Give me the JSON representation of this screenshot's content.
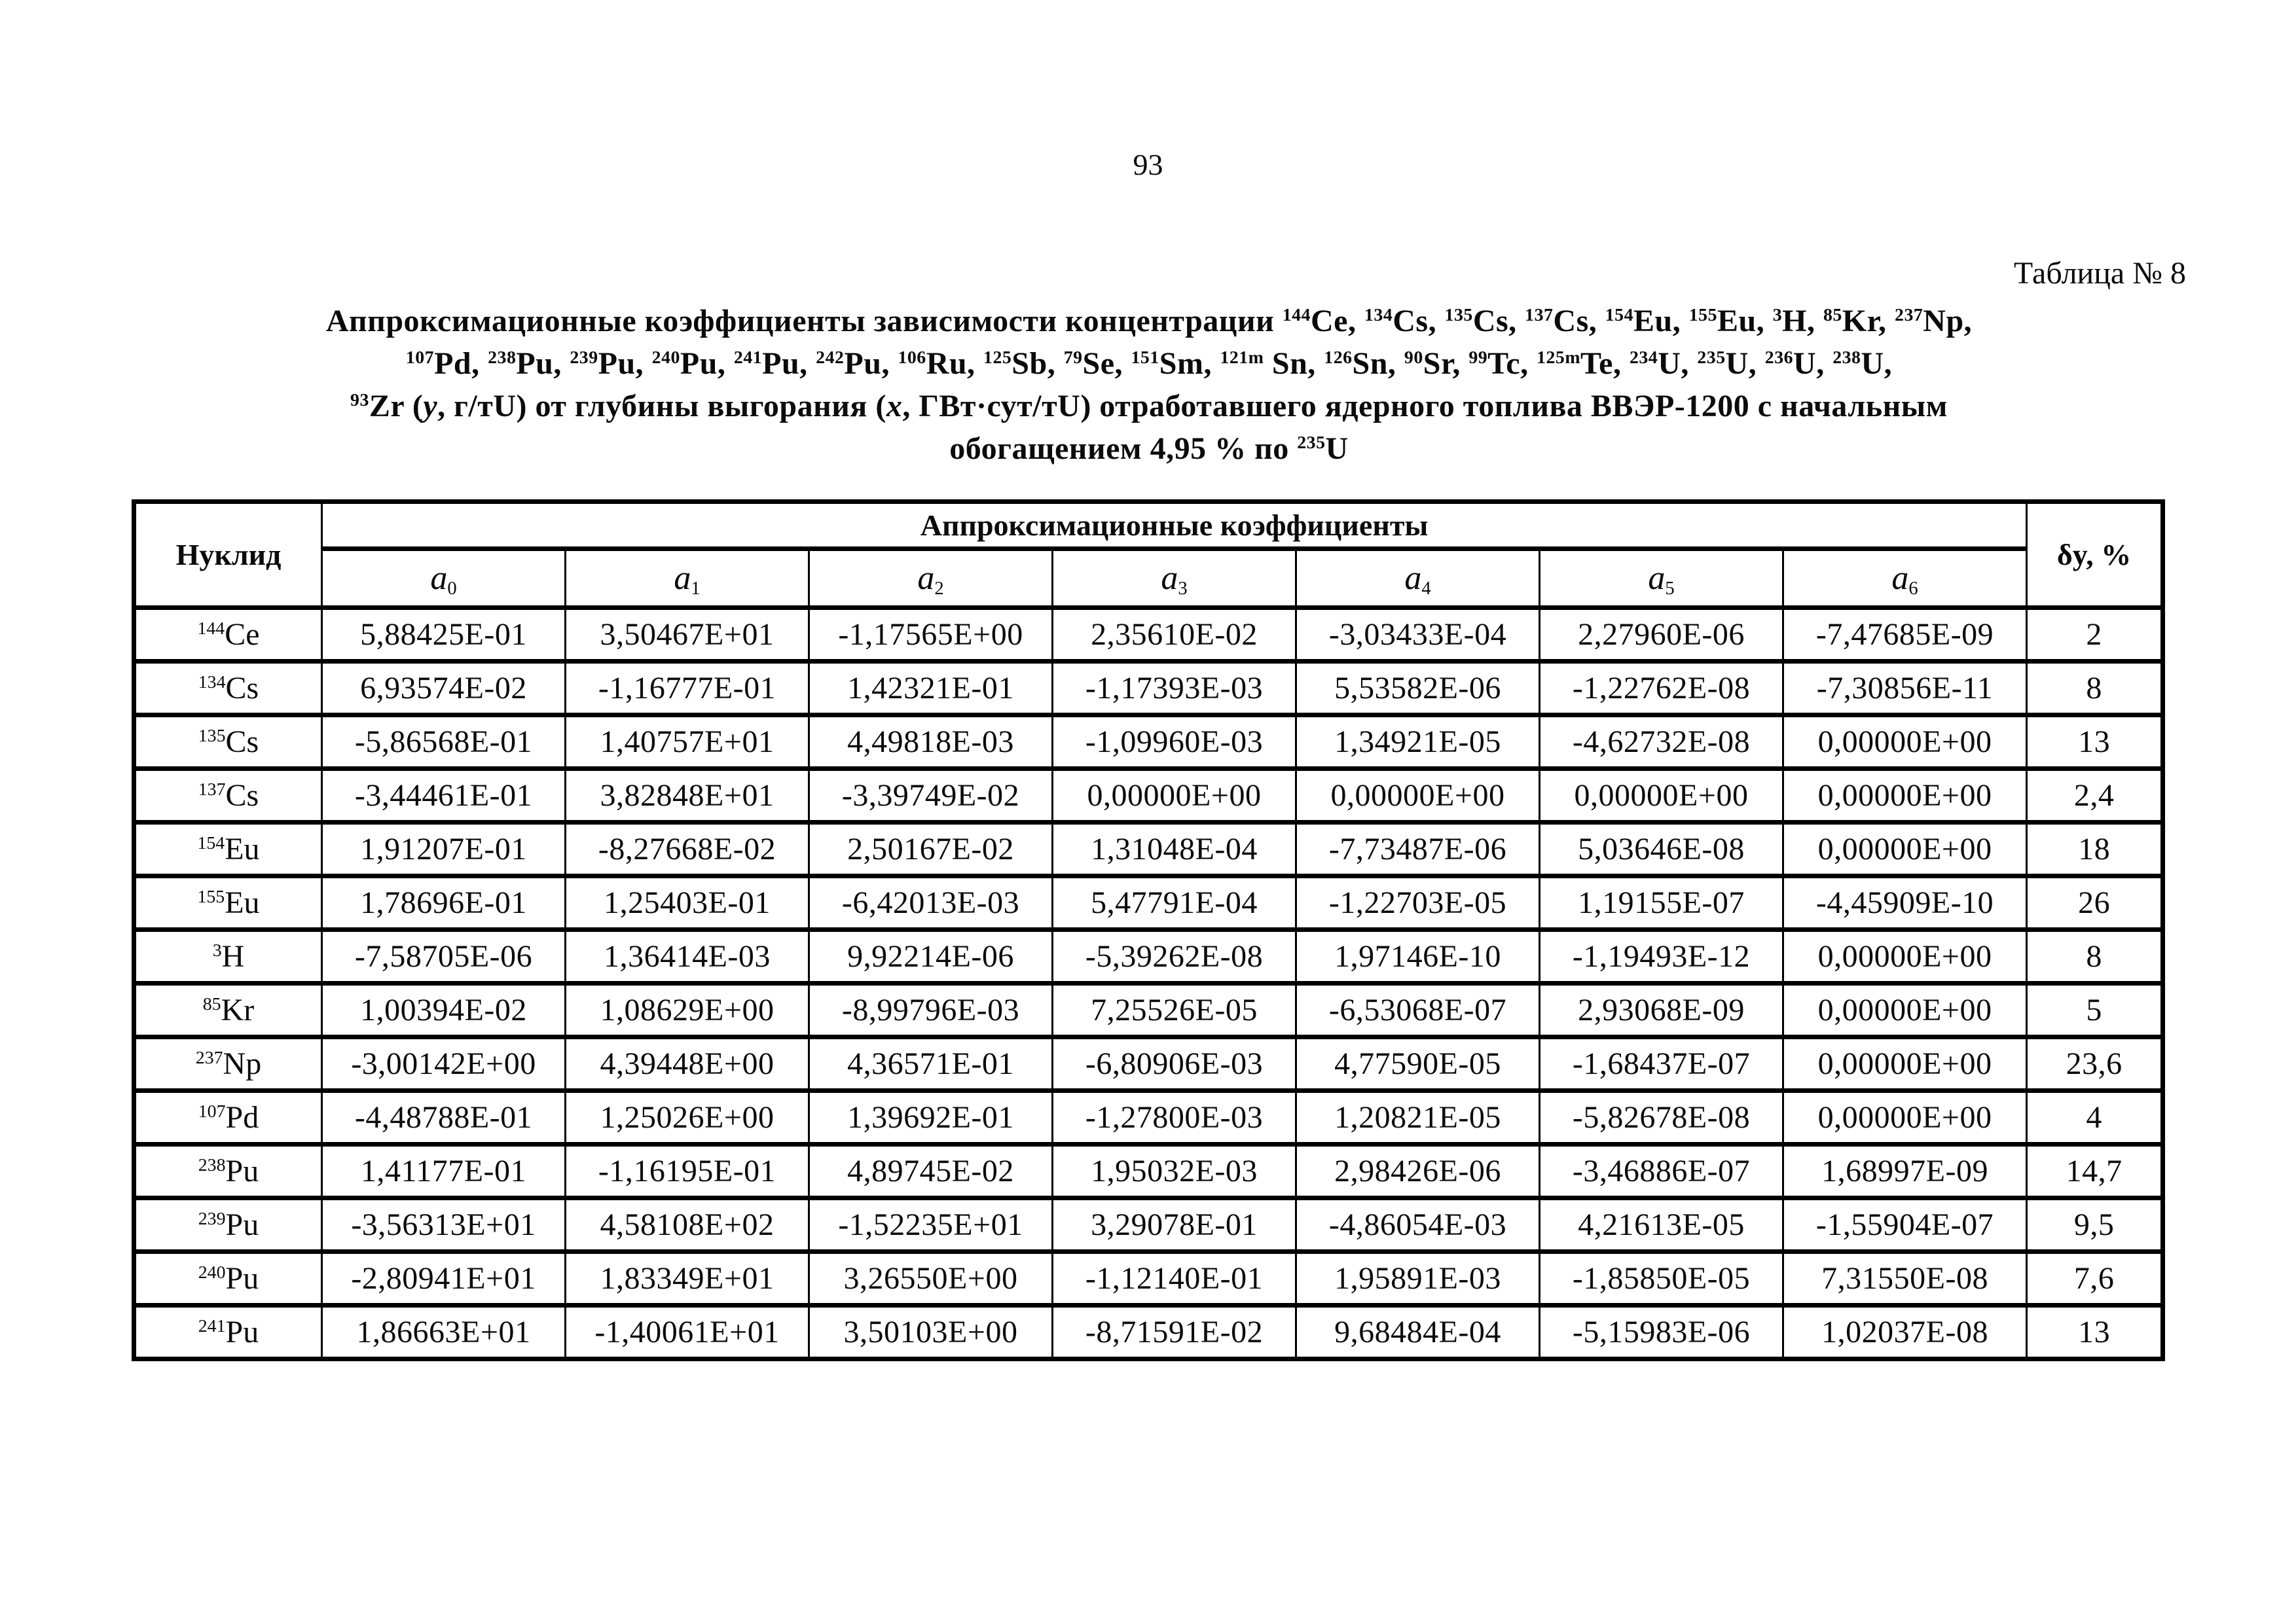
{
  "page_number": "93",
  "table_label": "Таблица № 8",
  "title_lines": [
    "Аппроксимационные коэффициенты зависимости концентрации ^{144}Ce, ^{134}Cs, ^{135}Cs, ^{137}Cs, ^{154}Eu, ^{155}Eu, ^{3}H, ^{85}Kr, ^{237}Np,",
    "^{107}Pd, ^{238}Pu, ^{239}Pu, ^{240}Pu, ^{241}Pu, ^{242}Pu, ^{106}Ru, ^{125}Sb, ^{79}Se, ^{151}Sm, ^{121m} Sn, ^{126}Sn, ^{90}Sr, ^{99}Tc, ^{125m}Te, ^{234}U, ^{235}U, ^{236}U, ^{238}U,",
    "^{93}Zr (*{y}, г/тU) от глубины выгорания (*{x}, ГВт·сут/тU) отработавшего ядерного топлива ВВЭР-1200 с начальным",
    "обогащением 4,95 % по ^{235}U"
  ],
  "table": {
    "header": {
      "nuclide": "Нуклид",
      "coefficients_group": "Аппроксимационные коэффициенты",
      "coefficient_columns": [
        "*{a}_{0}",
        "*{a}_{1}",
        "*{a}_{2}",
        "*{a}_{3}",
        "*{a}_{4}",
        "*{a}_{5}",
        "*{a}_{6}"
      ],
      "delta": "δy, %"
    },
    "rows": [
      {
        "nuclide": "^{144}Ce",
        "coefficients": [
          "5,88425E-01",
          "3,50467E+01",
          "-1,17565E+00",
          "2,35610E-02",
          "-3,03433E-04",
          "2,27960E-06",
          "-7,47685E-09"
        ],
        "delta_y": "2"
      },
      {
        "nuclide": "^{134}Cs",
        "coefficients": [
          "6,93574E-02",
          "-1,16777E-01",
          "1,42321E-01",
          "-1,17393E-03",
          "5,53582E-06",
          "-1,22762E-08",
          "-7,30856E-11"
        ],
        "delta_y": "8"
      },
      {
        "nuclide": "^{135}Cs",
        "coefficients": [
          "-5,86568E-01",
          "1,40757E+01",
          "4,49818E-03",
          "-1,09960E-03",
          "1,34921E-05",
          "-4,62732E-08",
          "0,00000E+00"
        ],
        "delta_y": "13"
      },
      {
        "nuclide": "^{137}Cs",
        "coefficients": [
          "-3,44461E-01",
          "3,82848E+01",
          "-3,39749E-02",
          "0,00000E+00",
          "0,00000E+00",
          "0,00000E+00",
          "0,00000E+00"
        ],
        "delta_y": "2,4"
      },
      {
        "nuclide": "^{154}Eu",
        "coefficients": [
          "1,91207E-01",
          "-8,27668E-02",
          "2,50167E-02",
          "1,31048E-04",
          "-7,73487E-06",
          "5,03646E-08",
          "0,00000E+00"
        ],
        "delta_y": "18"
      },
      {
        "nuclide": "^{155}Eu",
        "coefficients": [
          "1,78696E-01",
          "1,25403E-01",
          "-6,42013E-03",
          "5,47791E-04",
          "-1,22703E-05",
          "1,19155E-07",
          "-4,45909E-10"
        ],
        "delta_y": "26"
      },
      {
        "nuclide": "^{3}H",
        "coefficients": [
          "-7,58705E-06",
          "1,36414E-03",
          "9,92214E-06",
          "-5,39262E-08",
          "1,97146E-10",
          "-1,19493E-12",
          "0,00000E+00"
        ],
        "delta_y": "8"
      },
      {
        "nuclide": "^{85}Kr",
        "coefficients": [
          "1,00394E-02",
          "1,08629E+00",
          "-8,99796E-03",
          "7,25526E-05",
          "-6,53068E-07",
          "2,93068E-09",
          "0,00000E+00"
        ],
        "delta_y": "5"
      },
      {
        "nuclide": "^{237}Np",
        "coefficients": [
          "-3,00142E+00",
          "4,39448E+00",
          "4,36571E-01",
          "-6,80906E-03",
          "4,77590E-05",
          "-1,68437E-07",
          "0,00000E+00"
        ],
        "delta_y": "23,6"
      },
      {
        "nuclide": "^{107}Pd",
        "coefficients": [
          "-4,48788E-01",
          "1,25026E+00",
          "1,39692E-01",
          "-1,27800E-03",
          "1,20821E-05",
          "-5,82678E-08",
          "0,00000E+00"
        ],
        "delta_y": "4"
      },
      {
        "nuclide": "^{238}Pu",
        "coefficients": [
          "1,41177E-01",
          "-1,16195E-01",
          "4,89745E-02",
          "1,95032E-03",
          "2,98426E-06",
          "-3,46886E-07",
          "1,68997E-09"
        ],
        "delta_y": "14,7"
      },
      {
        "nuclide": "^{239}Pu",
        "coefficients": [
          "-3,56313E+01",
          "4,58108E+02",
          "-1,52235E+01",
          "3,29078E-01",
          "-4,86054E-03",
          "4,21613E-05",
          "-1,55904E-07"
        ],
        "delta_y": "9,5"
      },
      {
        "nuclide": "^{240}Pu",
        "coefficients": [
          "-2,80941E+01",
          "1,83349E+01",
          "3,26550E+00",
          "-1,12140E-01",
          "1,95891E-03",
          "-1,85850E-05",
          "7,31550E-08"
        ],
        "delta_y": "7,6"
      },
      {
        "nuclide": "^{241}Pu",
        "coefficients": [
          "1,86663E+01",
          "-1,40061E+01",
          "3,50103E+00",
          "-8,71591E-02",
          "9,68484E-04",
          "-5,15983E-06",
          "1,02037E-08"
        ],
        "delta_y": "13"
      }
    ]
  }
}
